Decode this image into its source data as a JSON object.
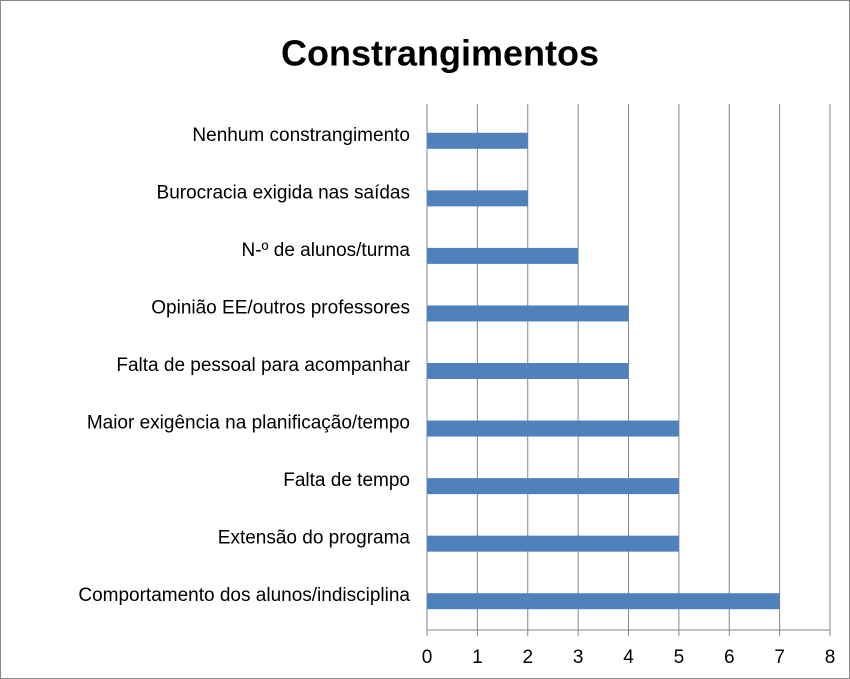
{
  "chart_data": {
    "type": "barh",
    "title": "Constrangimentos",
    "categories": [
      "Nenhum constrangimento",
      "Burocracia exigida nas saídas",
      "N-º  de alunos/turma",
      "Opinião EE/outros professores",
      "Falta de pessoal para acompanhar",
      "Maior exigência na planificação/tempo",
      "Falta de tempo",
      "Extensão do programa",
      "Comportamento dos alunos/indisciplina"
    ],
    "values": [
      2,
      2,
      3,
      4,
      4,
      5,
      5,
      5,
      7
    ],
    "color": "#4f81bd",
    "xlim": [
      0,
      8
    ],
    "xticks": [
      0,
      1,
      2,
      3,
      4,
      5,
      6,
      7,
      8
    ],
    "grid": true
  }
}
